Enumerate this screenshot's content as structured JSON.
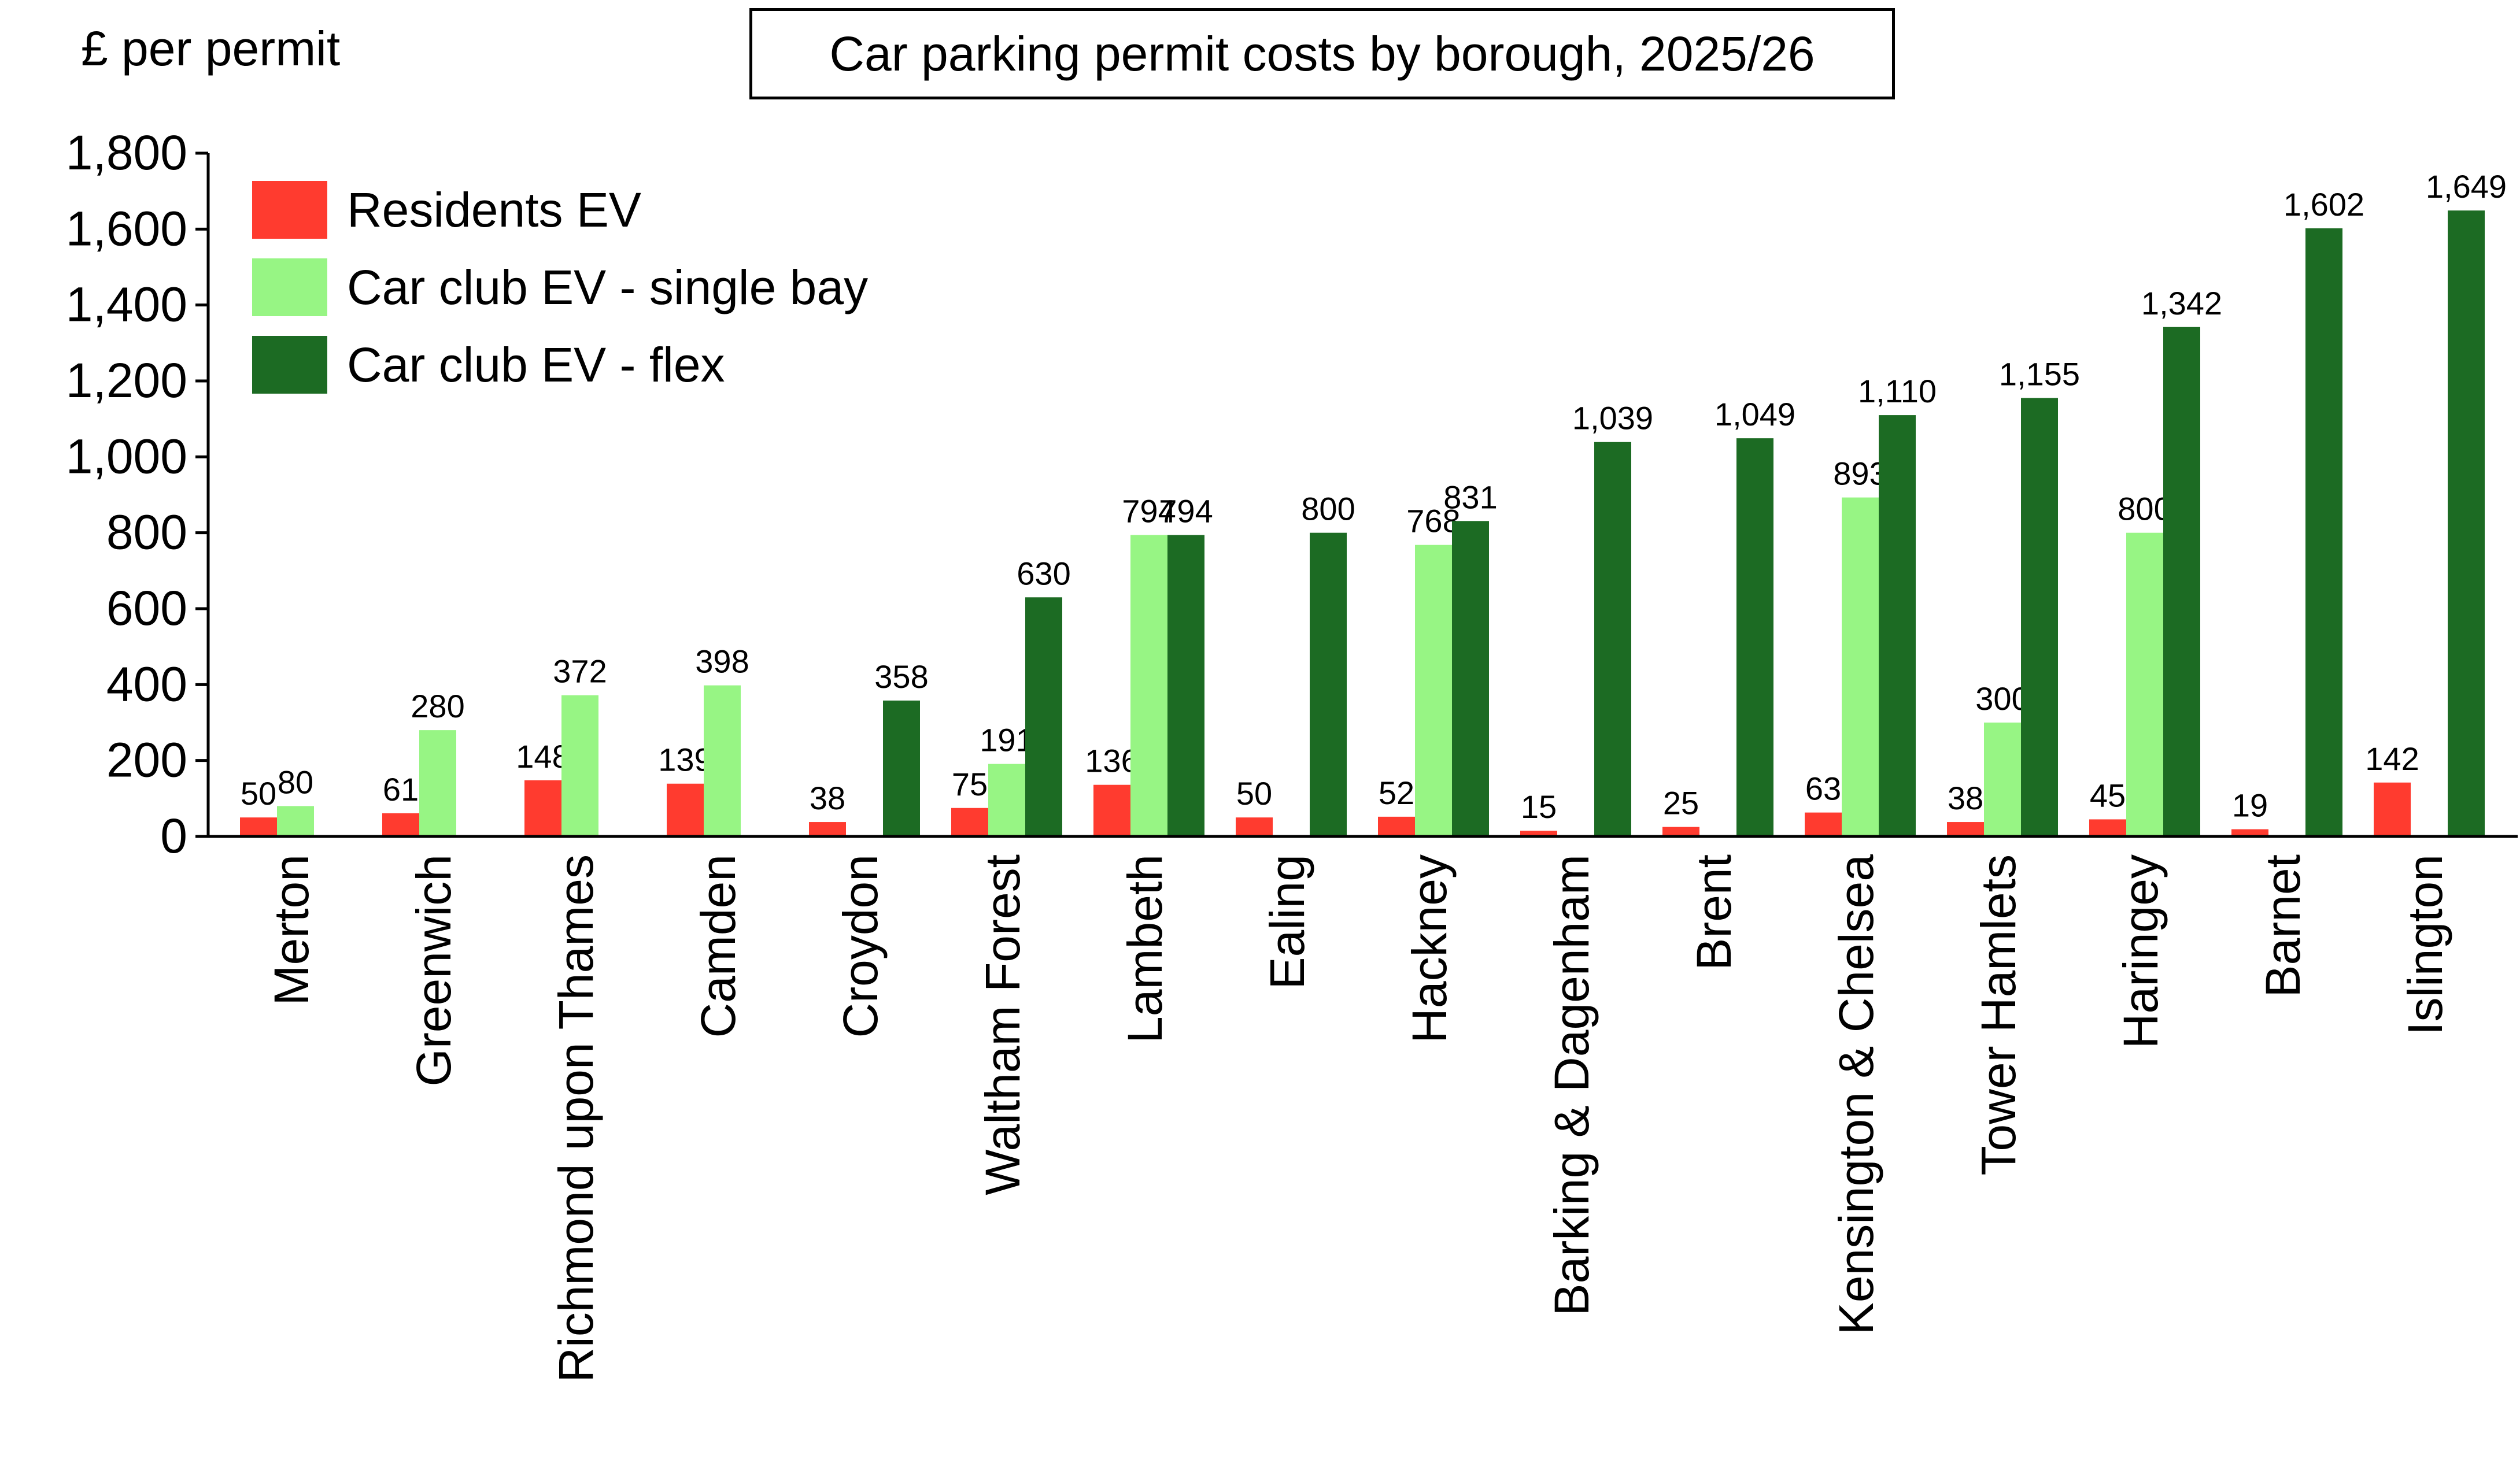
{
  "chart_data": {
    "type": "bar",
    "title": "Car parking permit costs by borough, 2025/26",
    "ylabel": "£ per permit",
    "ylim": [
      0,
      1800
    ],
    "yticks": [
      0,
      200,
      400,
      600,
      800,
      1000,
      1200,
      1400,
      1600,
      1800
    ],
    "ytick_labels": [
      "0",
      "200",
      "400",
      "600",
      "800",
      "1,000",
      "1,200",
      "1,400",
      "1,600",
      "1,800"
    ],
    "grid": false,
    "legend_position": "top-left",
    "categories": [
      "Merton",
      "Greenwich",
      "Richmond upon Thames",
      "Camden",
      "Croydon",
      "Waltham Forest",
      "Lambeth",
      "Ealing",
      "Hackney",
      "Barking & Dagenham",
      "Brent",
      "Kensington & Chelsea",
      "Tower Hamlets",
      "Haringey",
      "Barnet",
      "Islington"
    ],
    "series": [
      {
        "name": "Residents EV",
        "color": "#ff3b2f",
        "values": [
          50,
          61,
          148,
          139,
          38,
          75,
          136,
          50,
          52,
          15,
          25,
          63,
          38,
          45,
          19,
          142
        ],
        "labels": [
          "50",
          "61",
          "148",
          "139",
          "38",
          "75",
          "136",
          "50",
          "52",
          "15",
          "25",
          "63",
          "38",
          "45",
          "19",
          "142"
        ]
      },
      {
        "name": "Car club EV - single bay",
        "color": "#97f584",
        "values": [
          80,
          280,
          372,
          398,
          null,
          191,
          794,
          null,
          768,
          null,
          null,
          893,
          300,
          800,
          null,
          null
        ],
        "labels": [
          "80",
          "280",
          "372",
          "398",
          null,
          "191",
          "794",
          null,
          "768",
          null,
          null,
          "893",
          "300",
          "800",
          null,
          null
        ]
      },
      {
        "name": "Car club EV - flex",
        "color": "#1c6b23",
        "values": [
          null,
          null,
          null,
          null,
          358,
          630,
          794,
          800,
          831,
          1039,
          1049,
          1110,
          1155,
          1342,
          1602,
          1649
        ],
        "labels": [
          null,
          null,
          null,
          null,
          "358",
          "630",
          "794",
          "800",
          "831",
          "1,039",
          "1,049",
          "1,110",
          "1,155",
          "1,342",
          "1,602",
          "1,649"
        ]
      }
    ]
  }
}
